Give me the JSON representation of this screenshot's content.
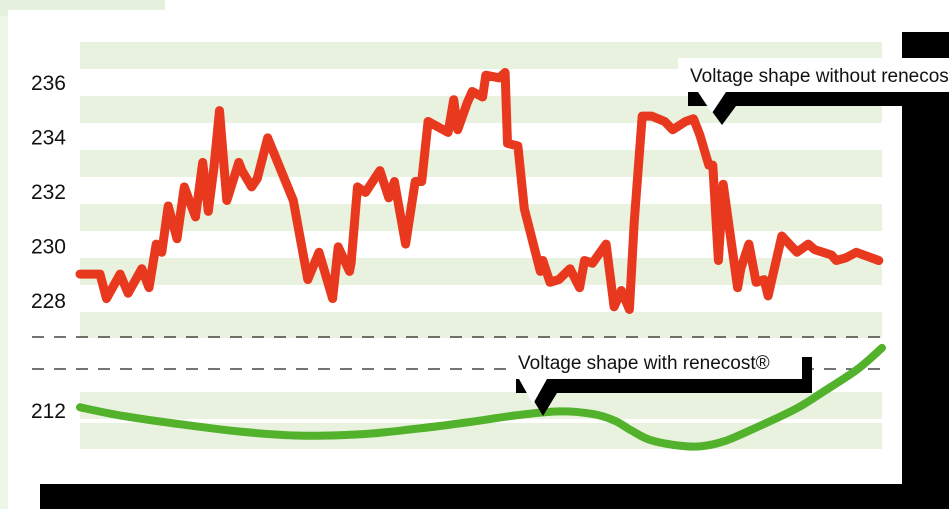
{
  "chart_data": {
    "type": "line",
    "x_range": [
      0,
      100
    ],
    "y_ticks": [
      "236",
      "234",
      "232",
      "230",
      "228",
      "212"
    ],
    "axis_break": true,
    "grid": "alternating horizontal bands",
    "series": [
      {
        "name": "Voltage shape without renecost®",
        "color": "#e8391e",
        "x": [
          0,
          2.5,
          3.3,
          5,
          6,
          7.7,
          8.6,
          9.5,
          10.2,
          11,
          12.1,
          13,
          14.4,
          15.3,
          16,
          16.7,
          17.4,
          18.3,
          19.8,
          20.2,
          21.4,
          22.1,
          23.4,
          26.6,
          28.4,
          29.8,
          31.5,
          32.2,
          33.6,
          33.8,
          34.6,
          35.6,
          37.4,
          38.5,
          39.2,
          40.6,
          41.8,
          42.6,
          43.4,
          45.9,
          46.6,
          47.1,
          48.3,
          48.9,
          50.2,
          50.6,
          52.3,
          53,
          53.3,
          54.6,
          55.4,
          57.4,
          57.7,
          58.6,
          59.7,
          61.1,
          62.3,
          62.9,
          63.9,
          65.6,
          66.6,
          67.5,
          68.5,
          69.1,
          70.1,
          71.3,
          72.9,
          73.9,
          75.5,
          76.5,
          77.3,
          78.4,
          78.9,
          79.6,
          80.2,
          82,
          82.4,
          83.4,
          84.3,
          85.3,
          85.8,
          87.5,
          89.4,
          90.8,
          91.6,
          93.7,
          94.3,
          95.5,
          96.8,
          99.6
        ],
        "y": [
          228.95,
          228.95,
          228.05,
          228.95,
          228.25,
          229.15,
          228.45,
          230.05,
          229.75,
          231.45,
          230.25,
          232.15,
          231.05,
          233.05,
          231.25,
          232.85,
          234.95,
          231.65,
          233.05,
          232.75,
          232.15,
          232.45,
          233.95,
          231.65,
          228.75,
          229.75,
          228.05,
          229.95,
          229.05,
          229.35,
          232.15,
          231.95,
          232.75,
          231.75,
          232.35,
          230.05,
          232.35,
          232.35,
          234.55,
          234.15,
          235.35,
          234.25,
          235.25,
          235.65,
          235.45,
          236.25,
          236.15,
          236.35,
          233.75,
          233.65,
          231.35,
          229.05,
          229.45,
          228.65,
          228.75,
          229.15,
          228.45,
          229.45,
          229.35,
          230.05,
          227.75,
          228.35,
          227.65,
          230.85,
          234.75,
          234.75,
          234.55,
          234.25,
          234.55,
          234.65,
          234.05,
          232.95,
          232.95,
          229.45,
          232.25,
          228.45,
          229.15,
          230.05,
          228.65,
          228.75,
          228.15,
          230.35,
          229.75,
          230.05,
          229.85,
          229.65,
          229.45,
          229.55,
          229.75,
          229.45
        ]
      },
      {
        "name": "Voltage shape with renecost®",
        "color": "#52b22c",
        "x": [
          0,
          5,
          11.8,
          20,
          27.4,
          35,
          41.8,
          48.5,
          54.3,
          59.8,
          64,
          66.7,
          68.7,
          71,
          74.2,
          77.3,
          80.4,
          84.3,
          89.3,
          92.8,
          96.9,
          100
        ],
        "y": [
          212.1,
          211.8,
          211.5,
          211.2,
          211.05,
          211.1,
          211.3,
          211.55,
          211.8,
          211.95,
          211.85,
          211.6,
          211.25,
          210.9,
          210.7,
          210.65,
          210.85,
          211.35,
          212.05,
          212.7,
          213.5,
          214.3
        ]
      }
    ],
    "annotations": [
      {
        "text": "Voltage shape without renecost®",
        "series": 0
      },
      {
        "text": "Voltage shape with renecost®",
        "series": 1
      }
    ]
  }
}
